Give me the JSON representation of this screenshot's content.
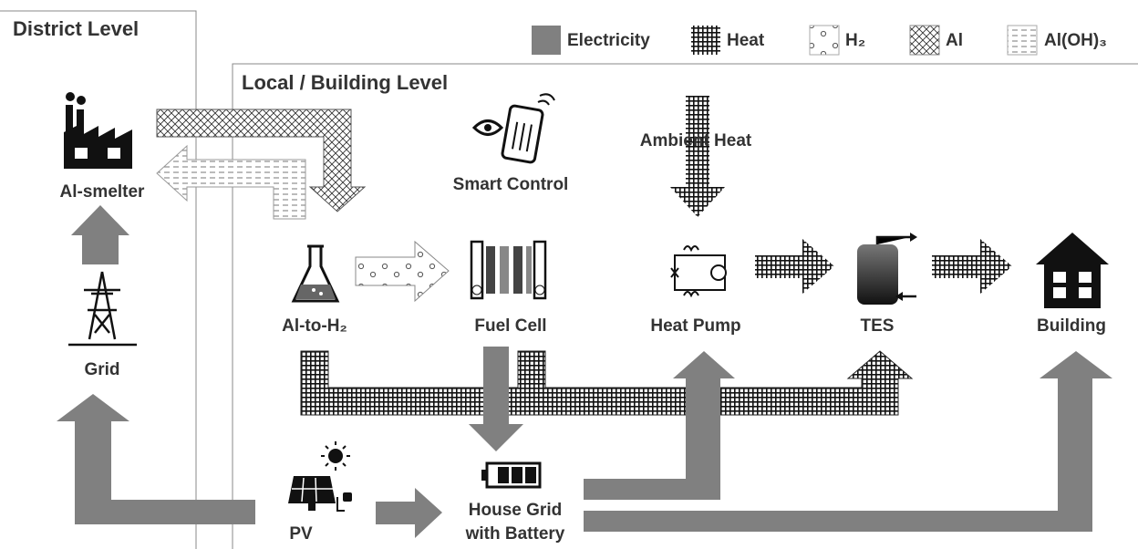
{
  "regions": {
    "district": "District Level",
    "local": "Local / Building Level"
  },
  "legend": [
    {
      "label": "Electricity"
    },
    {
      "label": "Heat"
    },
    {
      "label": "H₂"
    },
    {
      "label": "Al"
    },
    {
      "label": "Al(OH)₃"
    }
  ],
  "nodes": [
    {
      "label": "Al-smelter"
    },
    {
      "label": "Grid"
    },
    {
      "label": "Al-to-H₂"
    },
    {
      "label": "Fuel Cell"
    },
    {
      "label": "Smart Control"
    },
    {
      "label": "Ambient Heat"
    },
    {
      "label": "Heat Pump"
    },
    {
      "label": "TES"
    },
    {
      "label": "Building"
    },
    {
      "label": "PV"
    },
    {
      "label_lines": [
        "House Grid",
        "with Battery"
      ]
    }
  ]
}
